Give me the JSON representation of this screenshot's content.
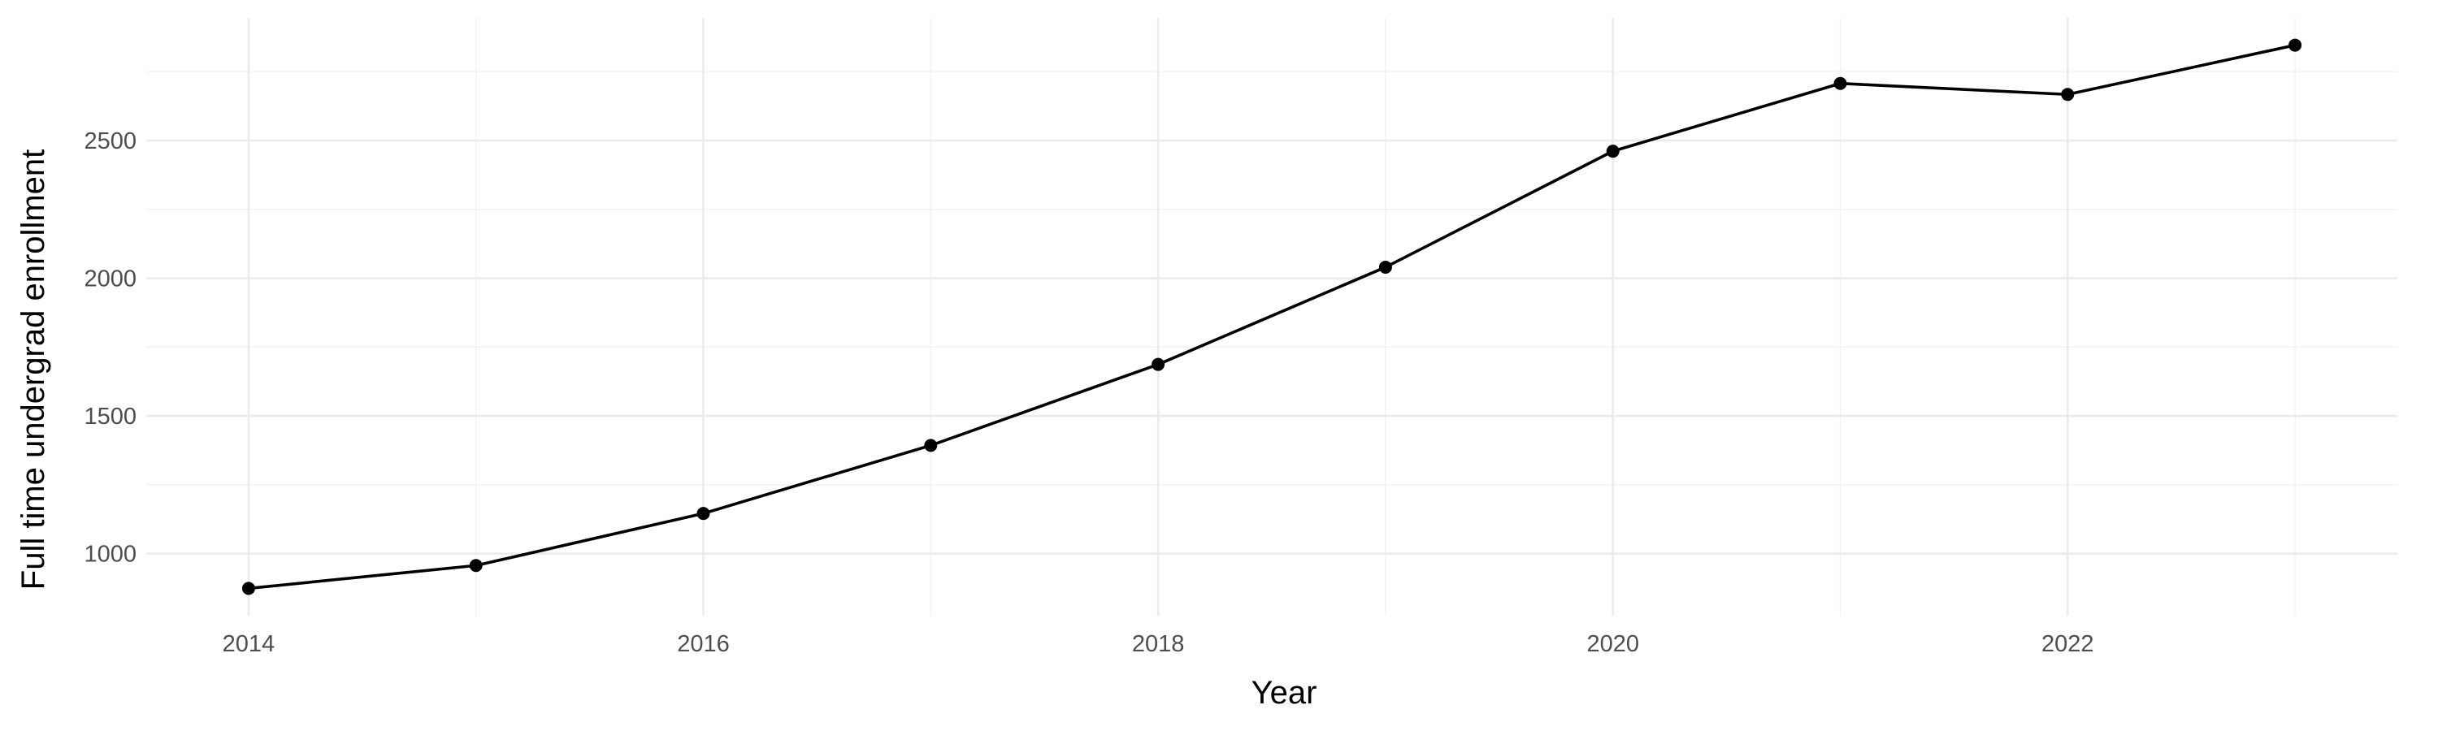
{
  "chart_data": {
    "type": "line",
    "title": "",
    "xlabel": "Year",
    "ylabel": "Full time undergrad enrollment",
    "x": [
      2014,
      2015,
      2016,
      2017,
      2018,
      2019,
      2020,
      2021,
      2022,
      2023
    ],
    "series": [
      {
        "values": [
          874,
          957,
          1146,
          1393,
          1687,
          2040,
          2461,
          2707,
          2667,
          2846
        ]
      }
    ],
    "x_ticks": [
      2014,
      2016,
      2018,
      2020,
      2022
    ],
    "y_ticks": [
      1000,
      1500,
      2000,
      2500
    ],
    "x_tick_labels": [
      "2014",
      "2016",
      "2018",
      "2020",
      "2022"
    ],
    "y_tick_labels": [
      "1000",
      "1500",
      "2000",
      "2500"
    ],
    "xlim": [
      2013.55,
      2023.45
    ],
    "ylim": [
      775,
      2945
    ],
    "grid": true,
    "legend": "none",
    "colors": {
      "line": "#000000",
      "point": "#000000",
      "grid_major": "#ebebeb",
      "grid_minor": "#f2f2f2",
      "tick_text": "#4d4d4d"
    }
  }
}
